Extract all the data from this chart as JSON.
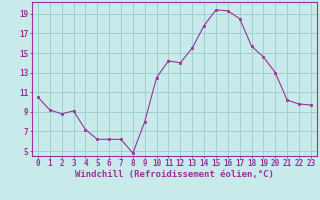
{
  "x": [
    0,
    1,
    2,
    3,
    4,
    5,
    6,
    7,
    8,
    9,
    10,
    11,
    12,
    13,
    14,
    15,
    16,
    17,
    18,
    19,
    20,
    21,
    22,
    23
  ],
  "y": [
    10.5,
    9.2,
    8.8,
    9.1,
    7.2,
    6.2,
    6.2,
    6.2,
    4.8,
    8.0,
    12.5,
    14.2,
    14.0,
    15.5,
    17.8,
    19.4,
    19.3,
    18.5,
    15.7,
    14.6,
    13.0,
    10.2,
    9.8,
    9.7
  ],
  "line_color": "#993399",
  "marker_color": "#993399",
  "bg_color": "#c8eaea",
  "grid_color": "#99cccc",
  "xlabel": "Windchill (Refroidissement éolien,°C)",
  "ylim": [
    4.5,
    20.2
  ],
  "xlim": [
    -0.5,
    23.5
  ],
  "yticks": [
    5,
    7,
    9,
    11,
    13,
    15,
    17,
    19
  ],
  "xticks": [
    0,
    1,
    2,
    3,
    4,
    5,
    6,
    7,
    8,
    9,
    10,
    11,
    12,
    13,
    14,
    15,
    16,
    17,
    18,
    19,
    20,
    21,
    22,
    23
  ],
  "tick_label_color": "#993399",
  "axis_color": "#993399",
  "font_size": 5.5,
  "xlabel_font_size": 6.5
}
